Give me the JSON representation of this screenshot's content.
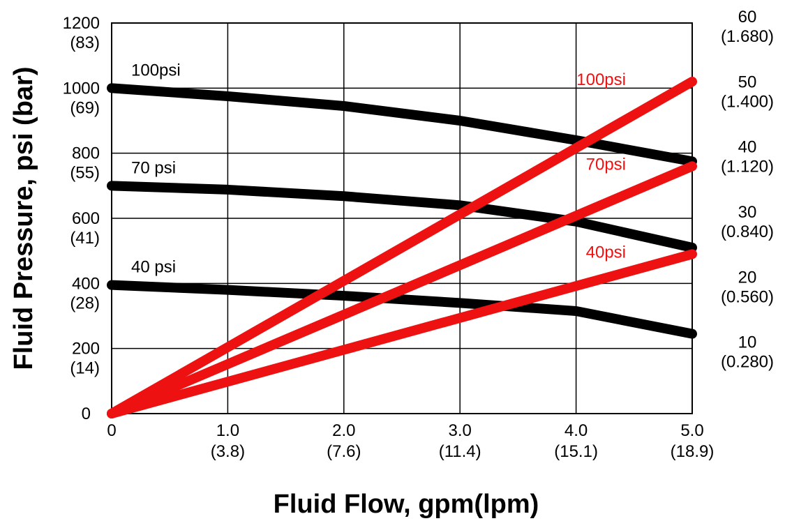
{
  "chart_data": {
    "type": "line",
    "xlabel": "Fluid Flow, gpm(lpm)",
    "ylabel": "Fluid Pressure,  psi (bar)",
    "xlim": [
      0,
      5.0
    ],
    "ylim": [
      0,
      1200
    ],
    "y2lim": [
      0,
      60
    ],
    "grid": true,
    "x_ticks": [
      {
        "value": 0,
        "label": "0",
        "sublabel": ""
      },
      {
        "value": 1.0,
        "label": "1.0",
        "sublabel": "(3.8)"
      },
      {
        "value": 2.0,
        "label": "2.0",
        "sublabel": "(7.6)"
      },
      {
        "value": 3.0,
        "label": "3.0",
        "sublabel": "(11.4)"
      },
      {
        "value": 4.0,
        "label": "4.0",
        "sublabel": "(15.1)"
      },
      {
        "value": 5.0,
        "label": "5.0",
        "sublabel": "(18.9)"
      }
    ],
    "y_ticks": [
      {
        "value": 0,
        "label": "0",
        "sublabel": ""
      },
      {
        "value": 200,
        "label": "200",
        "sublabel": "(14)"
      },
      {
        "value": 400,
        "label": "400",
        "sublabel": "(28)"
      },
      {
        "value": 600,
        "label": "600",
        "sublabel": "(41)"
      },
      {
        "value": 800,
        "label": "800",
        "sublabel": "(55)"
      },
      {
        "value": 1000,
        "label": "1000",
        "sublabel": "(69)"
      },
      {
        "value": 1200,
        "label": "1200",
        "sublabel": "(83)"
      }
    ],
    "y2_ticks": [
      {
        "value": 10,
        "label": "10",
        "sublabel": "(0.280)"
      },
      {
        "value": 20,
        "label": "20",
        "sublabel": "(0.560)"
      },
      {
        "value": 30,
        "label": "30",
        "sublabel": "(0.840)"
      },
      {
        "value": 40,
        "label": "40",
        "sublabel": "(1.120)"
      },
      {
        "value": 50,
        "label": "50",
        "sublabel": "(1.400)"
      },
      {
        "value": 60,
        "label": "60",
        "sublabel": "(1.680)"
      }
    ],
    "series": [
      {
        "name": "100psi",
        "color": "#000000",
        "axis": "left",
        "x": [
          0,
          1.0,
          2.0,
          3.0,
          4.0,
          5.0
        ],
        "y": [
          1000,
          975,
          945,
          900,
          840,
          775
        ]
      },
      {
        "name": "70 psi",
        "color": "#000000",
        "axis": "left",
        "x": [
          0,
          1.0,
          2.0,
          3.0,
          4.0,
          5.0
        ],
        "y": [
          700,
          688,
          668,
          640,
          590,
          510
        ]
      },
      {
        "name": "40 psi",
        "color": "#000000",
        "axis": "left",
        "x": [
          0,
          1.0,
          2.0,
          3.0,
          4.0,
          5.0
        ],
        "y": [
          395,
          380,
          362,
          340,
          315,
          245
        ]
      },
      {
        "name": "100psi",
        "color": "#ee1111",
        "axis": "right",
        "x": [
          0,
          5.0
        ],
        "y": [
          0,
          51
        ]
      },
      {
        "name": "70psi",
        "color": "#ee1111",
        "axis": "right",
        "x": [
          0,
          5.0
        ],
        "y": [
          0,
          38
        ]
      },
      {
        "name": "40psi",
        "color": "#ee1111",
        "axis": "right",
        "x": [
          0,
          5.0
        ],
        "y": [
          0,
          24.5
        ]
      }
    ]
  }
}
